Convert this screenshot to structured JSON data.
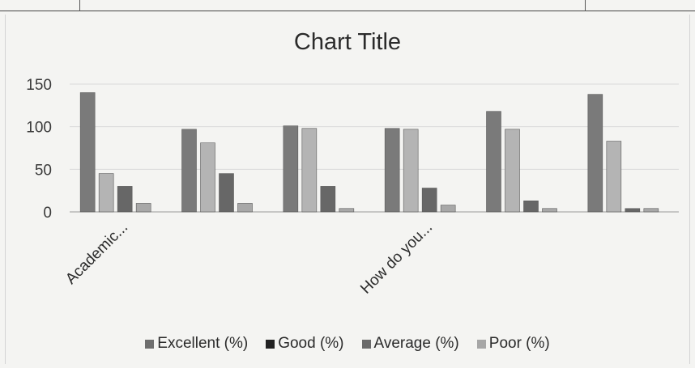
{
  "chart_data": {
    "type": "bar",
    "title": "Chart Title",
    "categories": [
      "Academic...",
      "",
      "",
      "How do you...",
      "",
      ""
    ],
    "series": [
      {
        "name": "Excellent (%)",
        "color": "#7a7a7a",
        "values": [
          140,
          97,
          101,
          98,
          118,
          138
        ]
      },
      {
        "name": "Good (%)",
        "color": "#b4b4b4",
        "values": [
          45,
          81,
          98,
          97,
          97,
          83
        ]
      },
      {
        "name": "Average (%)",
        "color": "#676767",
        "values": [
          30,
          45,
          30,
          28,
          13,
          4
        ]
      },
      {
        "name": "Poor (%)",
        "color": "#a8a8a8",
        "values": [
          10,
          10,
          4,
          8,
          4,
          4
        ]
      }
    ],
    "legend_markers": [
      "#6e6e6e",
      "#222222",
      "#6a6a6a",
      "#a6a6a6"
    ],
    "yticks": [
      0,
      50,
      100,
      150
    ],
    "ylim": [
      0,
      150
    ],
    "grid": true,
    "legend_position": "bottom"
  }
}
